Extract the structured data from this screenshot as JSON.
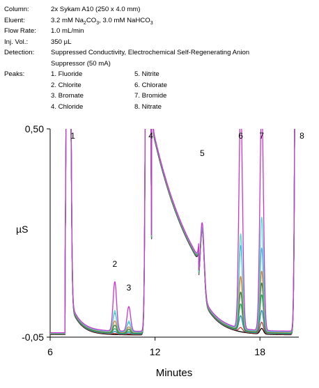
{
  "header": {
    "column": {
      "label": "Column:",
      "value": "2x Sykam A10 (250 x 4.0 mm)"
    },
    "eluent": {
      "label": "Eluent:",
      "pre": "3.2 mM Na",
      "sub1": "2",
      "mid": "CO",
      "sub2": "3",
      "post": ", 3.0 mM NaHCO",
      "sub3": "3"
    },
    "flow": {
      "label": "Flow Rate:",
      "value": "1.0 mL/min"
    },
    "inj": {
      "label": "Inj. Vol.:",
      "value": "350 µL"
    },
    "detection": {
      "label": "Detection:",
      "line1": "Suppressed Conductivity, Electrochemical Self-Regenerating Anion",
      "line2": "Suppressor (50 mA)"
    },
    "peaks": {
      "label": "Peaks:",
      "col1": [
        "1. Fluoride",
        "2. Chlorite",
        "3. Bromate",
        "4. Chloride"
      ],
      "col2": [
        "5. Nitrite",
        "6. Chlorate",
        "7. Bromide",
        "8. Nitrate"
      ]
    }
  },
  "chart_data": {
    "type": "line",
    "xlabel": "Minutes",
    "ylabel": "µS",
    "xlim": [
      6,
      20.2
    ],
    "ylim": [
      -0.05,
      0.5
    ],
    "x_ticks": [
      6,
      12,
      18
    ],
    "y_ticks": [
      {
        "value": 0.5,
        "label": "0,50"
      },
      {
        "value": -0.05,
        "label": "-0,05"
      }
    ],
    "peak_labels": [
      {
        "label": "1",
        "x": 7.1
      },
      {
        "label": "2",
        "x": 9.7
      },
      {
        "label": "3",
        "x": 10.5
      },
      {
        "label": "4",
        "x": 11.6
      },
      {
        "label": "5",
        "x": 14.7
      },
      {
        "label": "6",
        "x": 16.9
      },
      {
        "label": "7",
        "x": 18.1
      },
      {
        "label": "8",
        "x": 20.2
      }
    ],
    "series_colors": [
      "#000000",
      "#c0392b",
      "#2e86c1",
      "#27ae60",
      "#1e8449",
      "#e67e22",
      "#5dade2",
      "#48e0d0",
      "#cc33cc"
    ],
    "peak_heights": {
      "p2": [
        0.0,
        0.002,
        0.006,
        0.012,
        0.02,
        0.03,
        0.05,
        0.055,
        0.13
      ],
      "p3": [
        0.0,
        0.001,
        0.003,
        0.006,
        0.01,
        0.015,
        0.025,
        0.028,
        0.065
      ],
      "p5": [
        0.18,
        0.18,
        0.18,
        0.18,
        0.18,
        0.18,
        0.18,
        0.18,
        0.19
      ],
      "p6": [
        0.0,
        0.01,
        0.04,
        0.07,
        0.1,
        0.14,
        0.22,
        0.25,
        0.6
      ],
      "p7": [
        0.015,
        0.03,
        0.06,
        0.1,
        0.13,
        0.16,
        0.22,
        0.3,
        0.6
      ]
    }
  }
}
